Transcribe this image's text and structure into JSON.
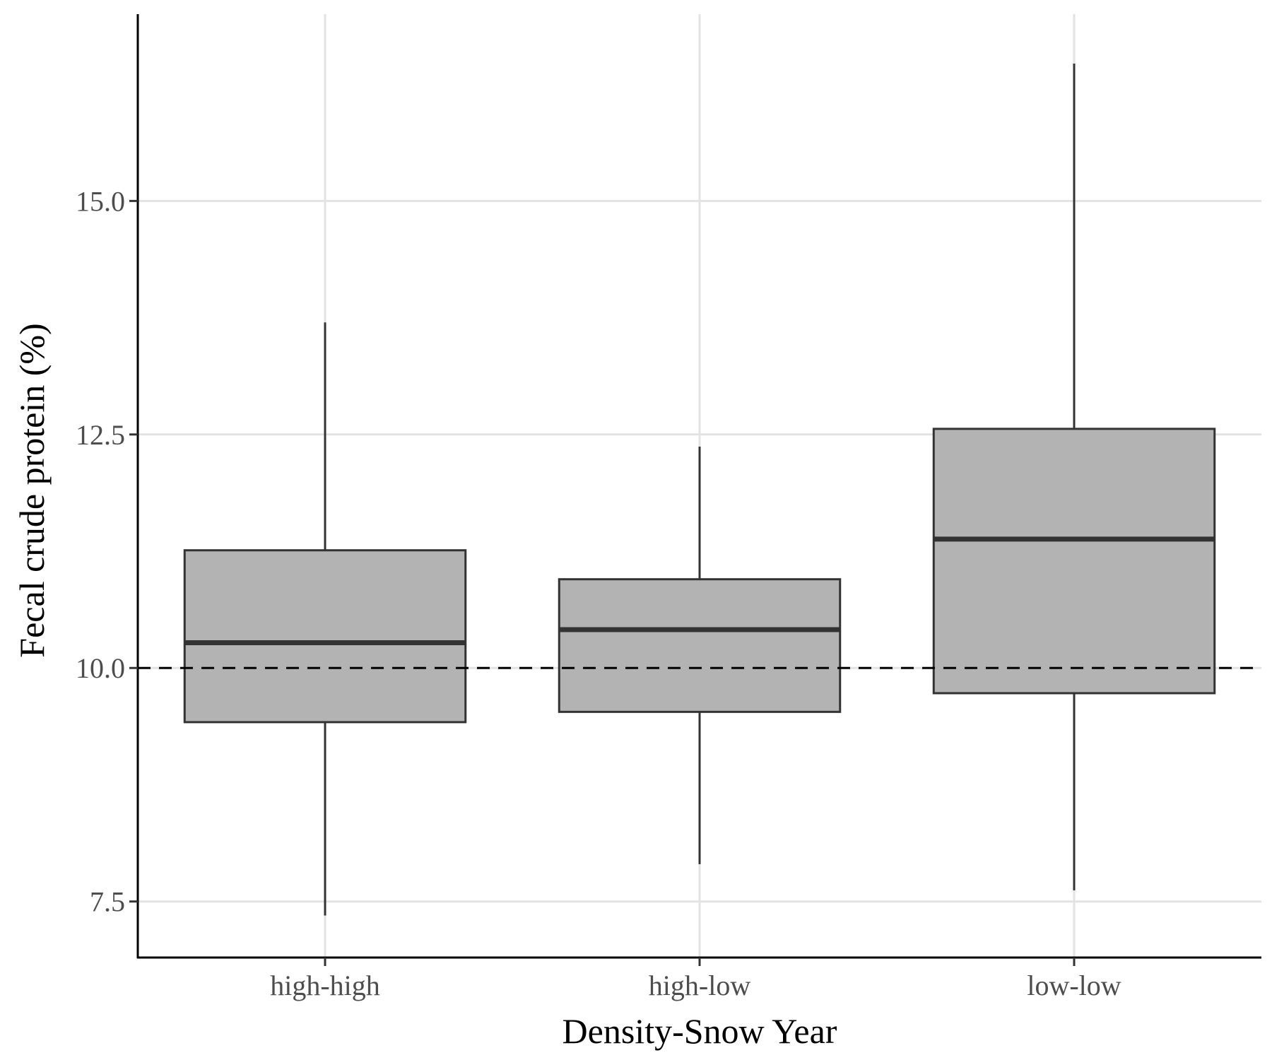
{
  "chart_data": {
    "type": "boxplot",
    "title": "",
    "xlabel": "Density-Snow Year",
    "ylabel": "Fecal crude protein (%)",
    "categories": [
      "high-high",
      "high-low",
      "low-low"
    ],
    "boxes": [
      {
        "category": "high-high",
        "whisker_low": 7.35,
        "q1": 9.42,
        "median": 10.27,
        "q3": 11.26,
        "whisker_high": 13.7
      },
      {
        "category": "high-low",
        "whisker_low": 7.9,
        "q1": 9.53,
        "median": 10.41,
        "q3": 10.95,
        "whisker_high": 12.37
      },
      {
        "category": "low-low",
        "whisker_low": 7.62,
        "q1": 9.73,
        "median": 11.38,
        "q3": 12.56,
        "whisker_high": 16.47
      }
    ],
    "reference_line": {
      "y": 10.0,
      "style": "dashed"
    },
    "y_ticks": [
      7.5,
      10.0,
      12.5,
      15.0
    ],
    "y_tick_labels": [
      "7.5",
      "10.0",
      "12.5",
      "15.0"
    ],
    "ylim": [
      6.9,
      17.0
    ],
    "grid": true,
    "colors": {
      "box_fill": "#b3b3b3",
      "box_stroke": "#333333",
      "grid": "#e3e3e3",
      "axis": "#000000",
      "reference_line": "#000000"
    }
  }
}
